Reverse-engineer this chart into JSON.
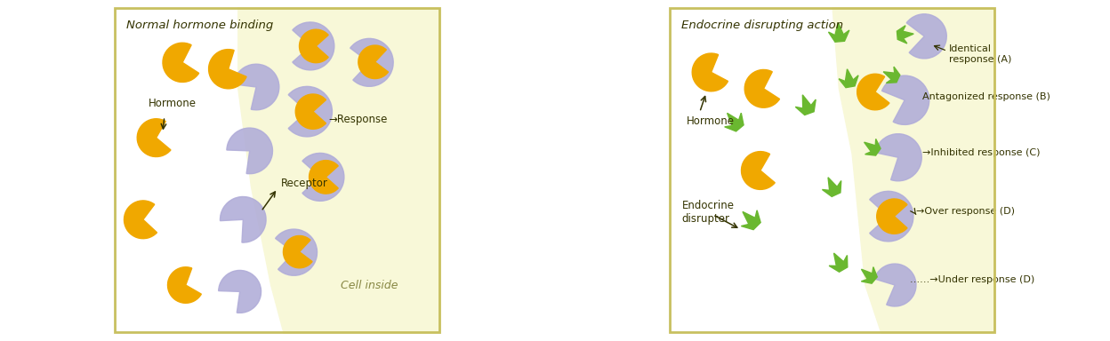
{
  "bg_outer": "#ffffff",
  "bg_panel": "#ffffff",
  "bg_cell": "#f8f8d8",
  "border_color": "#c8c060",
  "hormone_color": "#f0a800",
  "receptor_color": "#b0acd8",
  "disrupter_color": "#6ab830",
  "text_color": "#333300",
  "title_left": "Normal hormone binding",
  "title_right": "Endocrine disrupting action",
  "label_hormone": "Hormone",
  "label_receptor": "Receptor",
  "label_cell": "Cell inside",
  "label_endocrine": "Endocrine\ndisrupter",
  "label_response": "→Response",
  "label_identical": "Identical\nresponse (A)",
  "label_antagonized": "Antagonized response (B)",
  "label_inhibited": "→Inhibited response (C)",
  "label_over": "→Over response (D)",
  "label_under": "……→Under response (D)"
}
